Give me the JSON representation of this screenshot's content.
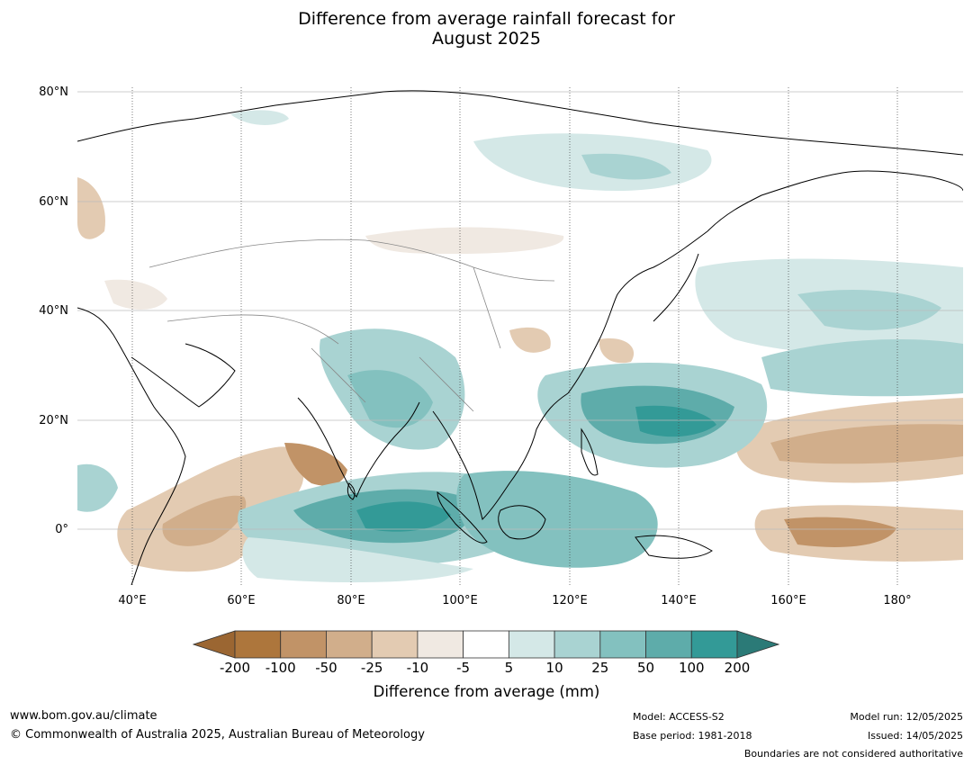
{
  "title": {
    "line1": "Difference from average rainfall forecast for",
    "line2": "August 2025"
  },
  "map": {
    "lon_range": [
      30,
      192
    ],
    "lat_range": [
      -10,
      81
    ],
    "latitude_labels": [
      "80°N",
      "60°N",
      "40°N",
      "20°N",
      "0°"
    ],
    "longitude_labels": [
      "40°E",
      "60°E",
      "80°E",
      "100°E",
      "120°E",
      "140°E",
      "160°E",
      "180°"
    ],
    "gridlines": true
  },
  "colorbar": {
    "labels": [
      "-200",
      "-100",
      "-50",
      "-25",
      "-10",
      "-5",
      "5",
      "10",
      "25",
      "50",
      "100",
      "200"
    ],
    "colors": {
      "under": "#9b6632",
      "bins": [
        "#ad763c",
        "#c19367",
        "#d1ae8b",
        "#e3cbb2",
        "#f0e9e2",
        "#ffffff",
        "#d4e8e7",
        "#a9d3d2",
        "#83c1bf",
        "#5eacaa",
        "#339a97"
      ],
      "over": "#2b7a77"
    },
    "title": "Difference from average (mm)"
  },
  "footer": {
    "website": "www.bom.gov.au/climate",
    "copyright": "© Commonwealth of Australia 2025, Australian Bureau of Meteorology",
    "model": "Model: ACCESS-S2",
    "base_period": "Base period: 1981-2018",
    "model_run": "Model run: 12/05/2025",
    "issued": "Issued: 14/05/2025",
    "disclaimer": "Boundaries are not considered authoritative"
  }
}
